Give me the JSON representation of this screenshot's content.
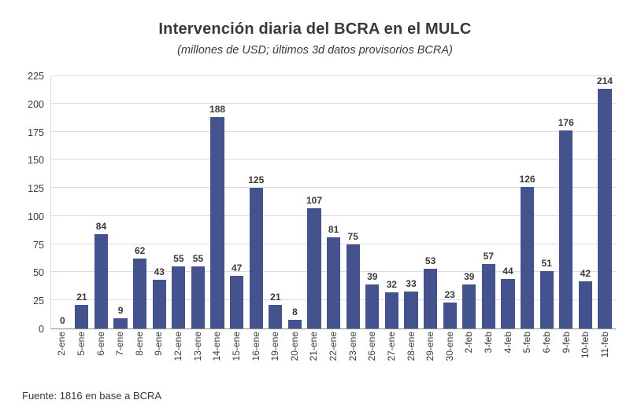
{
  "colors": {
    "bar": "#44538E",
    "grid": "#DBDBDB",
    "axis": "#8C8C8C",
    "text": "#3A3A3A"
  },
  "chart_data": {
    "type": "bar",
    "title": "Intervención diaria del BCRA en el MULC",
    "subtitle": "(millones de USD; últimos 3d datos provisorios BCRA)",
    "categories": [
      "2-ene",
      "5-ene",
      "6-ene",
      "7-ene",
      "8-ene",
      "9-ene",
      "12-ene",
      "13-ene",
      "14-ene",
      "15-ene",
      "16-ene",
      "19-ene",
      "20-ene",
      "21-ene",
      "22-ene",
      "23-ene",
      "26-ene",
      "27-ene",
      "28-ene",
      "29-ene",
      "30-ene",
      "2-feb",
      "3-feb",
      "4-feb",
      "5-feb",
      "6-feb",
      "9-feb",
      "10-feb",
      "11-feb"
    ],
    "values": [
      0,
      21,
      84,
      9,
      62,
      43,
      55,
      55,
      188,
      47,
      125,
      21,
      8,
      107,
      81,
      75,
      39,
      32,
      33,
      53,
      23,
      39,
      57,
      44,
      126,
      51,
      176,
      42,
      214
    ],
    "xlabel": "",
    "ylabel": "",
    "ylim": [
      0,
      225
    ],
    "yticks": [
      0,
      25,
      50,
      75,
      100,
      125,
      150,
      175,
      200,
      225
    ],
    "grid": "horizontal",
    "legend": "none",
    "value_labels": true,
    "source": "Fuente: 1816 en base a BCRA"
  }
}
